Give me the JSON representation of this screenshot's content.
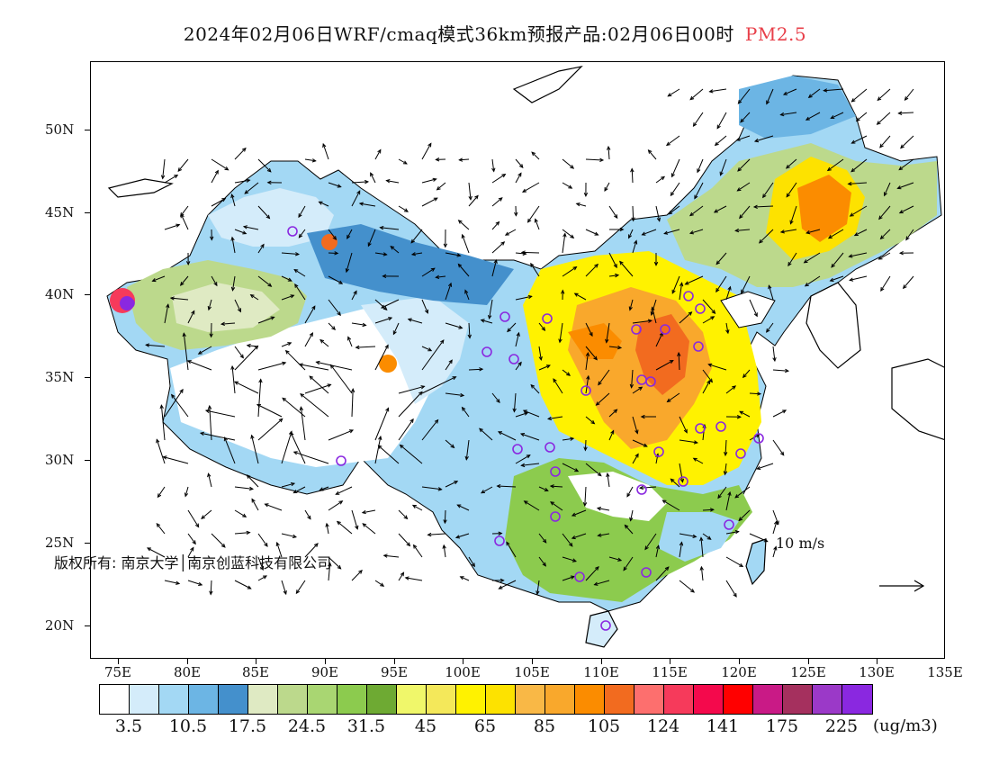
{
  "title": {
    "main": "2024年02月06日WRF/cmaq模式36km预报产品:02月06日00时",
    "pollutant": "PM2.5",
    "pollutant_color": "#e8404a"
  },
  "axes": {
    "lat_labels": [
      "50N",
      "45N",
      "40N",
      "35N",
      "30N",
      "25N",
      "20N"
    ],
    "lon_labels": [
      "75E",
      "80E",
      "85E",
      "90E",
      "95E",
      "100E",
      "105E",
      "110E",
      "115E",
      "120E",
      "125E",
      "130E",
      "135E"
    ]
  },
  "copyright": "版权所有: 南京大学│南京创蓝科技有限公司",
  "wind_scale": {
    "label": "10 m/s"
  },
  "colorbar": {
    "colors": [
      "#ffffff",
      "#d4ecfa",
      "#a3d8f4",
      "#6cb5e4",
      "#4490cc",
      "#dfeac3",
      "#bcd98c",
      "#a9d672",
      "#8ccb4e",
      "#6eaa33",
      "#f0f76a",
      "#f4e85a",
      "#fff200",
      "#fde200",
      "#f9b846",
      "#f9a82c",
      "#fb8c00",
      "#f26b1f",
      "#fd6f6e",
      "#f63a5b",
      "#f4094c",
      "#ff0000",
      "#c91a86",
      "#a5305e",
      "#9b39c8",
      "#8a28e0"
    ],
    "labels": [
      "3.5",
      "10.5",
      "17.5",
      "24.5",
      "31.5",
      "45",
      "65",
      "85",
      "105",
      "124",
      "141",
      "175",
      "225"
    ],
    "unit": "(ug/m3)"
  },
  "color_meaning": {
    "clean": "#ffffff",
    "moderate": "#fff200",
    "polluted": "#fb8c00",
    "heavy": "#fd6f6e",
    "severe": "#8a28e0",
    "boundary_line": "#000000",
    "city_marker": "#8a28e0"
  }
}
